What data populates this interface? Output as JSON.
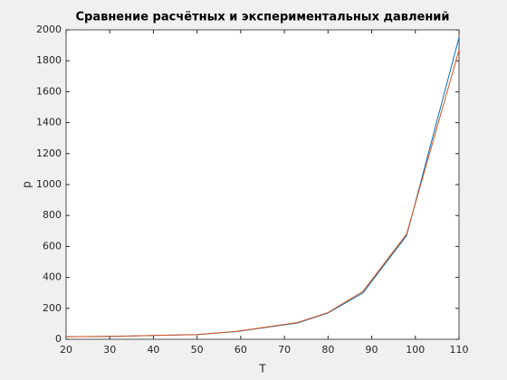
{
  "chart_data": {
    "type": "line",
    "title": "Сравнение расчётных и экспериментальных давлений",
    "x_label": "T",
    "y_label": "p",
    "x": [
      20,
      31,
      40,
      50,
      59,
      73,
      80,
      88,
      98,
      110
    ],
    "series": [
      {
        "color": "#0072BD",
        "values": [
          17,
          19,
          25,
          30,
          50,
          105,
          170,
          300,
          670,
          1950
        ]
      },
      {
        "color": "#D95319",
        "values": [
          17,
          19,
          25,
          31,
          51,
          108,
          173,
          310,
          680,
          1870
        ]
      }
    ],
    "xlim": [
      20,
      110
    ],
    "ylim": [
      0,
      2000
    ],
    "xticks": [
      20,
      30,
      40,
      50,
      60,
      70,
      80,
      90,
      100,
      110
    ],
    "yticks": [
      0,
      200,
      400,
      600,
      800,
      1000,
      1200,
      1400,
      1600,
      1800,
      2000
    ],
    "grid": false
  }
}
